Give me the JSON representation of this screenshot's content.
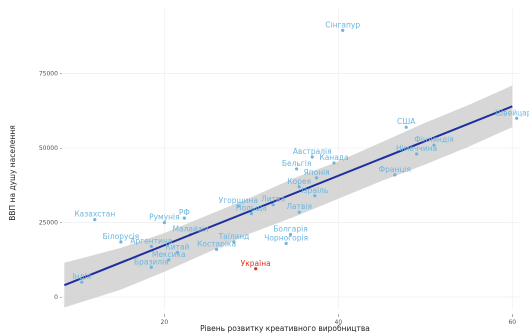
{
  "chart_data": {
    "type": "scatter",
    "xlabel": "Рівень розвитку креативного виробництва",
    "ylabel": "ВВП на душу населення",
    "xlim": [
      8,
      61
    ],
    "ylim": [
      -4000,
      97000
    ],
    "x_ticks": [
      {
        "value": 20,
        "label": "20"
      },
      {
        "value": 40,
        "label": "40"
      },
      {
        "value": 60,
        "label": "60"
      }
    ],
    "y_ticks": [
      {
        "value": 0,
        "label": "0 -"
      },
      {
        "value": 25000,
        "label": "25000 -"
      },
      {
        "value": 50000,
        "label": "50000 -"
      },
      {
        "value": 75000,
        "label": "75000 -"
      }
    ],
    "grid": true,
    "trend_line": {
      "x": [
        8.5,
        60
      ],
      "y": [
        4000,
        64000
      ],
      "color": "#1f2f9c"
    },
    "confidence_band": {
      "x": [
        8.5,
        15,
        20,
        25,
        30,
        35,
        40,
        45,
        50,
        55,
        60
      ],
      "upper": [
        11500,
        16500,
        21500,
        27500,
        33500,
        40000,
        45500,
        52000,
        58500,
        64500,
        71000
      ],
      "lower": [
        -3500,
        2500,
        8500,
        15000,
        21500,
        27000,
        33000,
        39000,
        44500,
        50500,
        57000
      ],
      "color": "#c9c9c9"
    },
    "point_color": "#6cb6e0",
    "highlight_color": "#e0301e",
    "points": [
      {
        "label": "Сінгапур",
        "x": 40.5,
        "y": 89500
      },
      {
        "label": "США",
        "x": 47.8,
        "y": 57000
      },
      {
        "label": "Швейцарія",
        "x": 60.5,
        "y": 60000
      },
      {
        "label": "Австралія",
        "x": 37,
        "y": 47000
      },
      {
        "label": "Канада",
        "x": 39.5,
        "y": 45000
      },
      {
        "label": "Бельгія",
        "x": 35.2,
        "y": 43000
      },
      {
        "label": "Японія",
        "x": 37.5,
        "y": 40000
      },
      {
        "label": "Корея",
        "x": 35.5,
        "y": 37000
      },
      {
        "label": "Ізраїль",
        "x": 37.3,
        "y": 34000
      },
      {
        "label": "Франція",
        "x": 46.5,
        "y": 41000
      },
      {
        "label": "Німеччина",
        "x": 49,
        "y": 48000
      },
      {
        "label": "Фінляндія",
        "x": 51,
        "y": 51000
      },
      {
        "label": "Латвія",
        "x": 35.5,
        "y": 28500
      },
      {
        "label": "Литва",
        "x": 32.5,
        "y": 31000
      },
      {
        "label": "Угорщина",
        "x": 28.5,
        "y": 30500
      },
      {
        "label": "Польща",
        "x": 30,
        "y": 28000
      },
      {
        "label": "Болгарія",
        "x": 34.5,
        "y": 21000
      },
      {
        "label": "Чорногорія",
        "x": 34,
        "y": 18000
      },
      {
        "label": "Таїланд",
        "x": 28,
        "y": 18500
      },
      {
        "label": "Костаріка",
        "x": 26,
        "y": 16000
      },
      {
        "label": "Казахстан",
        "x": 12,
        "y": 26000
      },
      {
        "label": "Румунія",
        "x": 20,
        "y": 25000
      },
      {
        "label": "РФ",
        "x": 22.3,
        "y": 26500
      },
      {
        "label": "Білорусія",
        "x": 15,
        "y": 18500
      },
      {
        "label": "Аргентина",
        "x": 18.5,
        "y": 17000
      },
      {
        "label": "Китай",
        "x": 21.5,
        "y": 15000
      },
      {
        "label": "Малайзія",
        "x": 23,
        "y": 21000
      },
      {
        "label": "Мексика",
        "x": 20.5,
        "y": 12500
      },
      {
        "label": "Бразилія",
        "x": 18.5,
        "y": 10000
      },
      {
        "label": "Індія",
        "x": 10.5,
        "y": 5000
      },
      {
        "label": "Україна",
        "x": 30.5,
        "y": 9500,
        "highlight": true
      }
    ]
  }
}
